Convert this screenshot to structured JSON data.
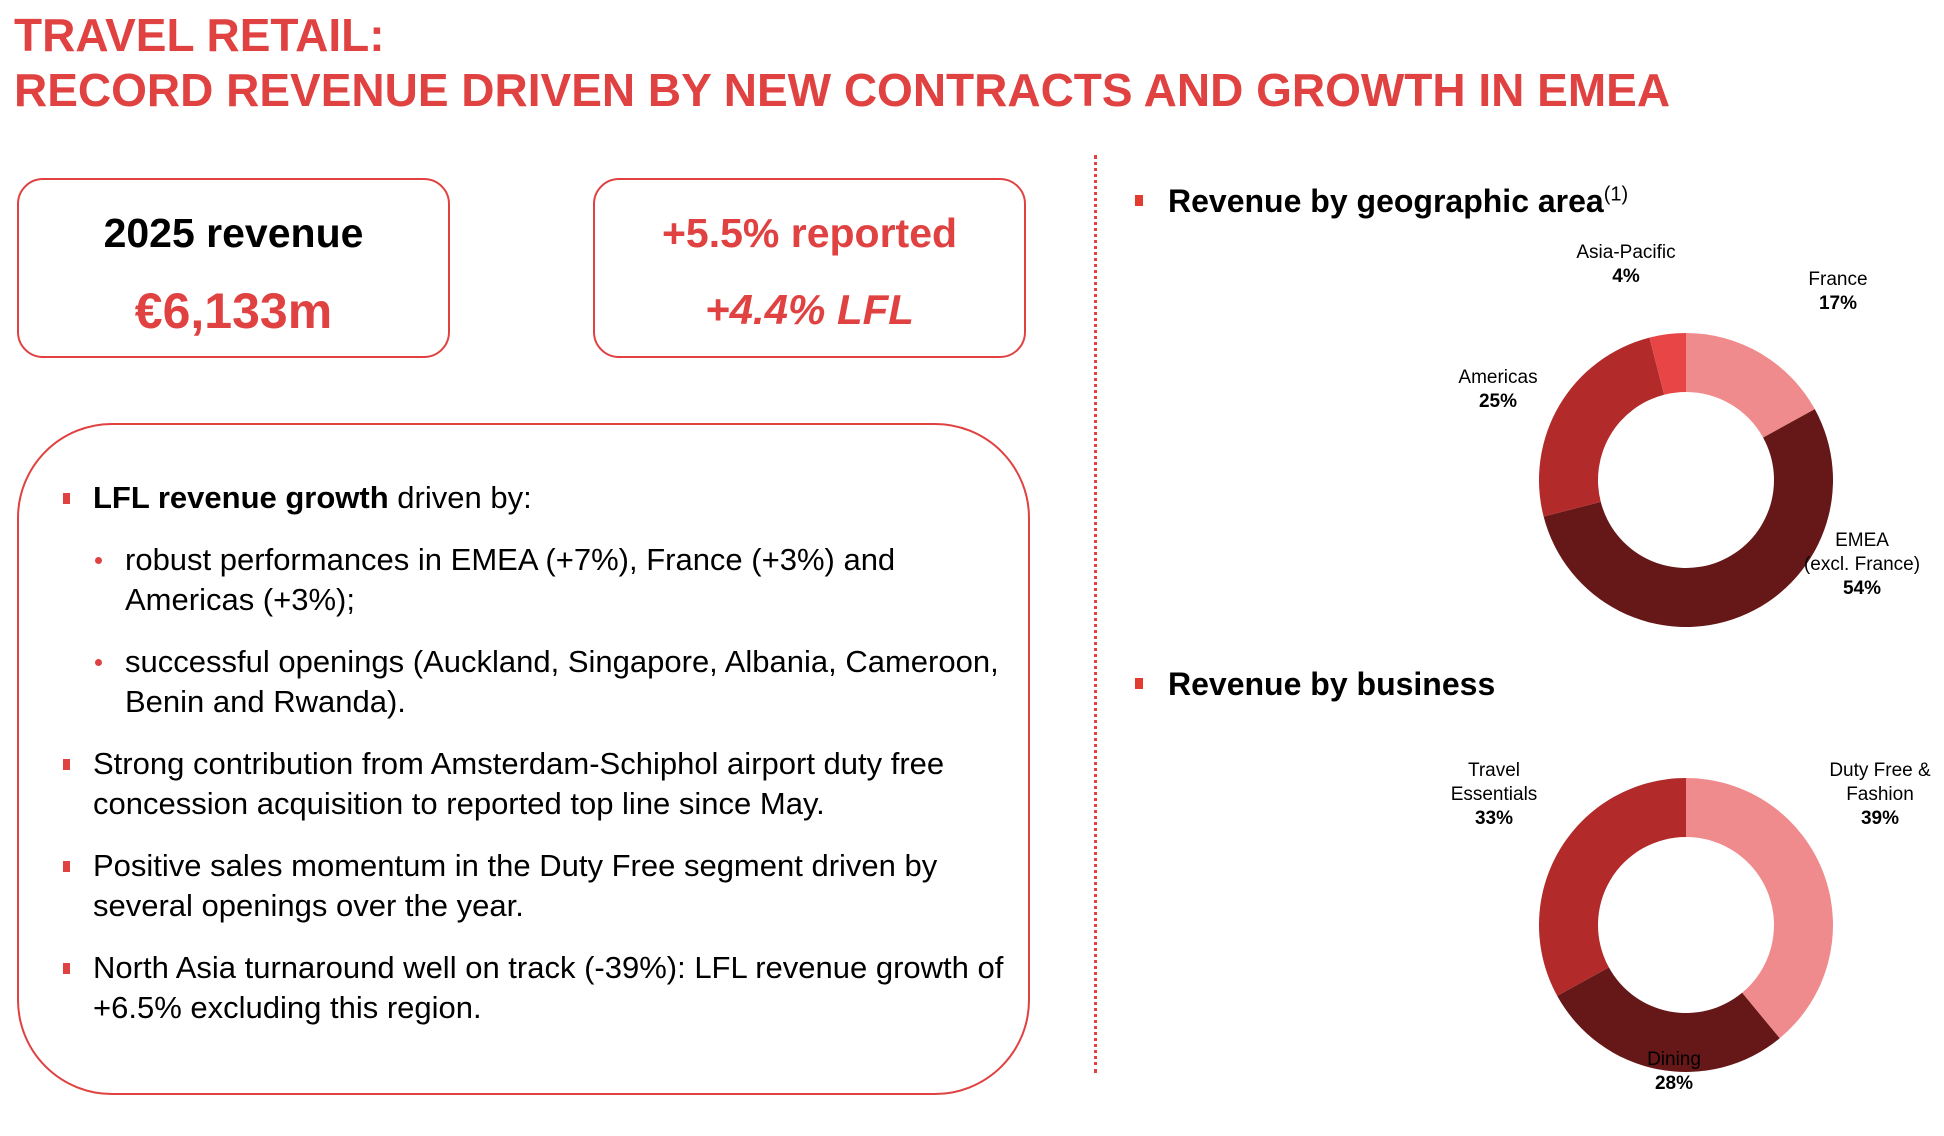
{
  "title": {
    "line1": "TRAVEL RETAIL:",
    "line2": "RECORD REVENUE DRIVEN BY NEW CONTRACTS AND GROWTH IN EMEA"
  },
  "kpis": {
    "revenue_label": "2025 revenue",
    "revenue_value": "€6,133m",
    "reported_growth": "+5.5% reported",
    "lfl_growth": "+4.4% LFL"
  },
  "bullets": {
    "item1_bold": "LFL revenue growth",
    "item1_rest": " driven by:",
    "sub1": "robust performances in EMEA (+7%), France (+3%) and Americas (+3%);",
    "sub2": "successful openings (Auckland, Singapore, Albania, Cameroon, Benin and Rwanda).",
    "item2": "Strong contribution from Amsterdam-Schiphol airport duty free concession acquisition to reported top line since May.",
    "item3": "Positive sales momentum in the Duty Free segment driven by several openings over the year.",
    "item4": "North Asia turnaround well on track (-39%): LFL revenue growth of +6.5% excluding this region."
  },
  "colors": {
    "accent": "#e04141",
    "light_pink": "#f08b8d",
    "dark_maroon": "#661717",
    "mid_red": "#b22a29",
    "bright_red": "#e84646"
  },
  "chart_data": [
    {
      "type": "pie",
      "title": "Revenue by geographic area",
      "title_footnote": "(1)",
      "donut": true,
      "categories": [
        "France",
        "EMEA (excl. France)",
        "Americas",
        "Asia-Pacific"
      ],
      "label_lines": [
        [
          "France"
        ],
        [
          "EMEA",
          "(excl. France)"
        ],
        [
          "Americas"
        ],
        [
          "Asia-Pacific"
        ]
      ],
      "values": [
        17,
        54,
        25,
        4
      ],
      "value_labels": [
        "17%",
        "54%",
        "25%",
        "4%"
      ],
      "colors": [
        "#f08b8d",
        "#661717",
        "#b22a29",
        "#e84646"
      ],
      "unit": "%"
    },
    {
      "type": "pie",
      "title": "Revenue by business",
      "donut": true,
      "categories": [
        "Duty Free & Fashion",
        "Dining",
        "Travel Essentials"
      ],
      "label_lines": [
        [
          "Duty Free &",
          "Fashion"
        ],
        [
          "Dining"
        ],
        [
          "Travel",
          "Essentials"
        ]
      ],
      "values": [
        39,
        28,
        33
      ],
      "value_labels": [
        "39%",
        "28%",
        "33%"
      ],
      "colors": [
        "#f08b8d",
        "#661717",
        "#b22a29"
      ],
      "unit": "%"
    }
  ]
}
